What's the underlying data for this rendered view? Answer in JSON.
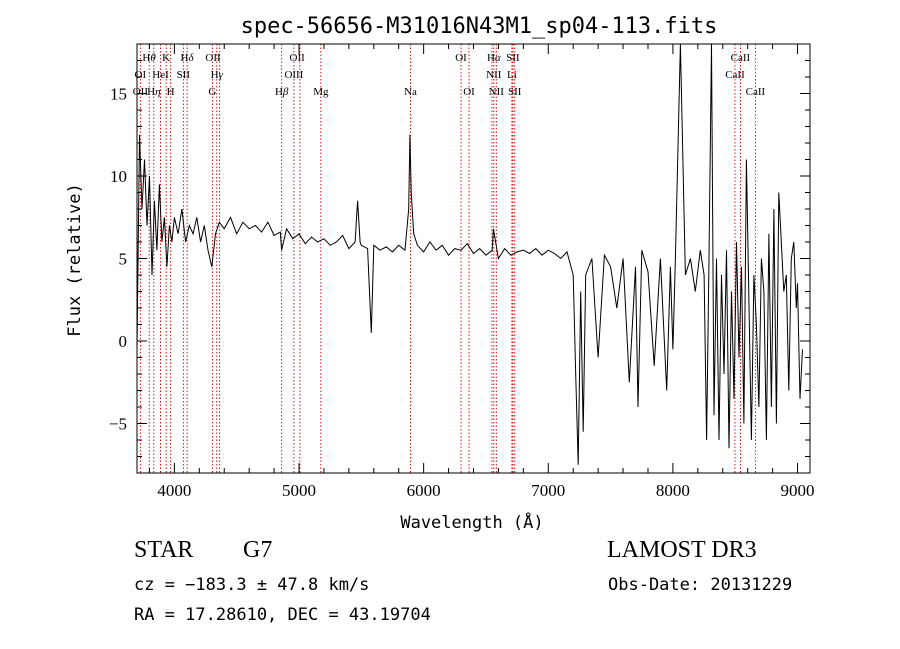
{
  "chart_data": {
    "type": "line",
    "title": "spec-56656-M31016N43M1_sp04-113.fits",
    "xlabel": "Wavelength (Å)",
    "ylabel": "Flux (relative)",
    "xlim": [
      3700,
      9100
    ],
    "ylim": [
      -8,
      18
    ],
    "xticks": [
      4000,
      5000,
      6000,
      7000,
      8000,
      9000
    ],
    "yticks": [
      -5,
      0,
      5,
      10,
      15
    ],
    "x_tick_labels": [
      "4000",
      "5000",
      "6000",
      "7000",
      "8000",
      "9000"
    ],
    "y_tick_labels": [
      "−5",
      "0",
      "5",
      "10",
      "15"
    ],
    "series": [
      {
        "name": "spectrum",
        "x": [
          3700,
          3720,
          3740,
          3760,
          3780,
          3800,
          3820,
          3840,
          3860,
          3880,
          3900,
          3920,
          3940,
          3960,
          3980,
          4000,
          4030,
          4060,
          4090,
          4120,
          4150,
          4180,
          4210,
          4240,
          4270,
          4300,
          4330,
          4360,
          4400,
          4450,
          4500,
          4550,
          4600,
          4650,
          4700,
          4750,
          4800,
          4850,
          4860,
          4900,
          4950,
          5000,
          5050,
          5100,
          5150,
          5200,
          5250,
          5300,
          5350,
          5400,
          5450,
          5470,
          5490,
          5500,
          5550,
          5580,
          5600,
          5650,
          5700,
          5750,
          5800,
          5850,
          5880,
          5890,
          5900,
          5920,
          5950,
          6000,
          6050,
          6100,
          6150,
          6200,
          6250,
          6300,
          6350,
          6400,
          6450,
          6500,
          6550,
          6560,
          6600,
          6650,
          6700,
          6750,
          6800,
          6850,
          6900,
          6950,
          7000,
          7050,
          7100,
          7150,
          7200,
          7220,
          7240,
          7260,
          7280,
          7300,
          7350,
          7400,
          7450,
          7500,
          7550,
          7600,
          7650,
          7700,
          7720,
          7750,
          7800,
          7850,
          7900,
          7950,
          7980,
          8000,
          8020,
          8060,
          8100,
          8140,
          8180,
          8220,
          8250,
          8270,
          8290,
          8310,
          8330,
          8350,
          8370,
          8390,
          8410,
          8430,
          8450,
          8470,
          8490,
          8510,
          8530,
          8550,
          8570,
          8590,
          8610,
          8630,
          8650,
          8670,
          8690,
          8710,
          8730,
          8750,
          8770,
          8790,
          8810,
          8830,
          8850,
          8870,
          8890,
          8910,
          8930,
          8950,
          8970,
          8990,
          9000,
          9020,
          9040
        ],
        "y": [
          -0.5,
          12.5,
          8.0,
          11.0,
          7.0,
          10.0,
          4.0,
          8.5,
          5.5,
          9.5,
          6.0,
          7.5,
          4.5,
          7.0,
          6.0,
          7.5,
          6.5,
          8.0,
          6.0,
          7.0,
          6.5,
          7.5,
          6.0,
          7.0,
          5.5,
          4.5,
          6.5,
          7.2,
          6.8,
          7.5,
          6.5,
          7.2,
          6.8,
          7.0,
          6.6,
          7.2,
          6.4,
          6.6,
          5.5,
          6.8,
          6.2,
          6.5,
          5.9,
          6.3,
          6.0,
          6.2,
          5.8,
          6.0,
          6.4,
          5.6,
          6.0,
          8.5,
          6.0,
          5.8,
          5.6,
          0.5,
          5.8,
          5.5,
          5.7,
          5.4,
          5.8,
          5.5,
          8.0,
          12.5,
          9.0,
          6.5,
          5.8,
          5.4,
          6.0,
          5.5,
          5.8,
          5.2,
          5.6,
          5.5,
          5.9,
          5.3,
          5.6,
          5.2,
          5.5,
          6.8,
          5.0,
          5.6,
          5.2,
          5.4,
          5.5,
          5.3,
          5.6,
          5.2,
          5.5,
          5.3,
          5.0,
          5.4,
          4.0,
          -2.0,
          -7.5,
          3.0,
          -5.5,
          4.0,
          5.0,
          -1.0,
          5.2,
          4.5,
          2.0,
          5.0,
          -2.5,
          4.5,
          -4.0,
          5.5,
          4.2,
          -1.5,
          5.0,
          -3.0,
          4.5,
          -0.5,
          5.0,
          18.0,
          4.0,
          5.0,
          3.0,
          5.5,
          4.0,
          -6.0,
          5.0,
          18.0,
          -4.5,
          5.0,
          -6.0,
          4.0,
          -2.0,
          5.5,
          -6.5,
          3.0,
          -3.5,
          6.0,
          -1.0,
          4.5,
          -5.0,
          11.0,
          2.5,
          -6.0,
          4.0,
          1.0,
          -4.0,
          5.0,
          3.0,
          -6.0,
          6.5,
          -4.0,
          8.0,
          -5.0,
          9.0,
          6.0,
          3.0,
          4.0,
          -3.0,
          5.0,
          6.0,
          2.0,
          3.5,
          -3.5,
          -0.5
        ]
      }
    ],
    "annotation_lines": [
      {
        "x": 3727,
        "color": "#cc0000"
      },
      {
        "x": 3798,
        "color": "#cc0000"
      },
      {
        "x": 3835,
        "color": "#cc0000"
      },
      {
        "x": 3889,
        "color": "#cc0000"
      },
      {
        "x": 3934,
        "color": "#cc0000"
      },
      {
        "x": 3970,
        "color": "#cc0000"
      },
      {
        "x": 4072,
        "color": "#cc0000"
      },
      {
        "x": 4102,
        "color": "#cc0000"
      },
      {
        "x": 4305,
        "color": "#cc0000"
      },
      {
        "x": 4340,
        "color": "#cc0000"
      },
      {
        "x": 4363,
        "color": "#cc0000"
      },
      {
        "x": 4861,
        "color": "#cc0000"
      },
      {
        "x": 4959,
        "color": "#cc0000"
      },
      {
        "x": 5007,
        "color": "#cc0000"
      },
      {
        "x": 5175,
        "color": "#cc0000"
      },
      {
        "x": 5894,
        "color": "#cc0000"
      },
      {
        "x": 6300,
        "color": "#cc0000"
      },
      {
        "x": 6364,
        "color": "#cc0000"
      },
      {
        "x": 6548,
        "color": "#cc0000"
      },
      {
        "x": 6563,
        "color": "#cc0000"
      },
      {
        "x": 6583,
        "color": "#cc0000"
      },
      {
        "x": 6708,
        "color": "#cc0000"
      },
      {
        "x": 6716,
        "color": "#cc0000"
      },
      {
        "x": 6731,
        "color": "#cc0000"
      },
      {
        "x": 8498,
        "color": "#cc0000"
      },
      {
        "x": 8542,
        "color": "#cc0000"
      },
      {
        "x": 8662,
        "color": "#cc0000"
      }
    ],
    "line_labels": [
      {
        "text": "H",
        "sub": "θ",
        "x": 3797,
        "row": 1
      },
      {
        "text": "K",
        "x": 3934,
        "row": 1
      },
      {
        "text": "H",
        "sub": "δ",
        "x": 4102,
        "row": 1
      },
      {
        "text": "OII",
        "x": 4310,
        "row": 1
      },
      {
        "text": "OII",
        "x": 4985,
        "row": 1
      },
      {
        "text": "OI",
        "x": 6300,
        "row": 1
      },
      {
        "text": "H",
        "sub": "α",
        "x": 6563,
        "row": 1
      },
      {
        "text": "SII",
        "x": 6716,
        "row": 1
      },
      {
        "text": "CaII",
        "x": 8542,
        "row": 1
      },
      {
        "text": "OI",
        "x": 3727,
        "row": 2
      },
      {
        "text": "HeI",
        "x": 3889,
        "row": 2
      },
      {
        "text": "SII",
        "x": 4072,
        "row": 2
      },
      {
        "text": "H",
        "sub": "γ",
        "x": 4340,
        "row": 2
      },
      {
        "text": "OIII",
        "x": 4959,
        "row": 2
      },
      {
        "text": "NII",
        "x": 6563,
        "row": 2
      },
      {
        "text": "Li",
        "x": 6708,
        "row": 2
      },
      {
        "text": "CaII",
        "x": 8498,
        "row": 2
      },
      {
        "text": "OII",
        "x": 3727,
        "row": 3
      },
      {
        "text": "H",
        "sub": "η",
        "x": 3835,
        "row": 3
      },
      {
        "text": "H",
        "x": 3970,
        "row": 3
      },
      {
        "text": "G",
        "x": 4305,
        "row": 3
      },
      {
        "text": "H",
        "sub": "β",
        "x": 4861,
        "row": 3
      },
      {
        "text": "Mg",
        "x": 5175,
        "row": 3
      },
      {
        "text": "Na",
        "x": 5894,
        "row": 3
      },
      {
        "text": "OI",
        "x": 6364,
        "row": 3
      },
      {
        "text": "NII",
        "x": 6583,
        "row": 3
      },
      {
        "text": "SII",
        "x": 6731,
        "row": 3
      },
      {
        "text": "CaII",
        "x": 8662,
        "row": 3
      }
    ]
  },
  "footer": {
    "object_class": "STAR",
    "subclass": "G7",
    "survey": "LAMOST DR3",
    "cz": "cz = −183.3 ± 47.8 km/s",
    "obs_date": "Obs-Date: 20131229",
    "radec": "RA =  17.28610, DEC =  43.19704"
  }
}
